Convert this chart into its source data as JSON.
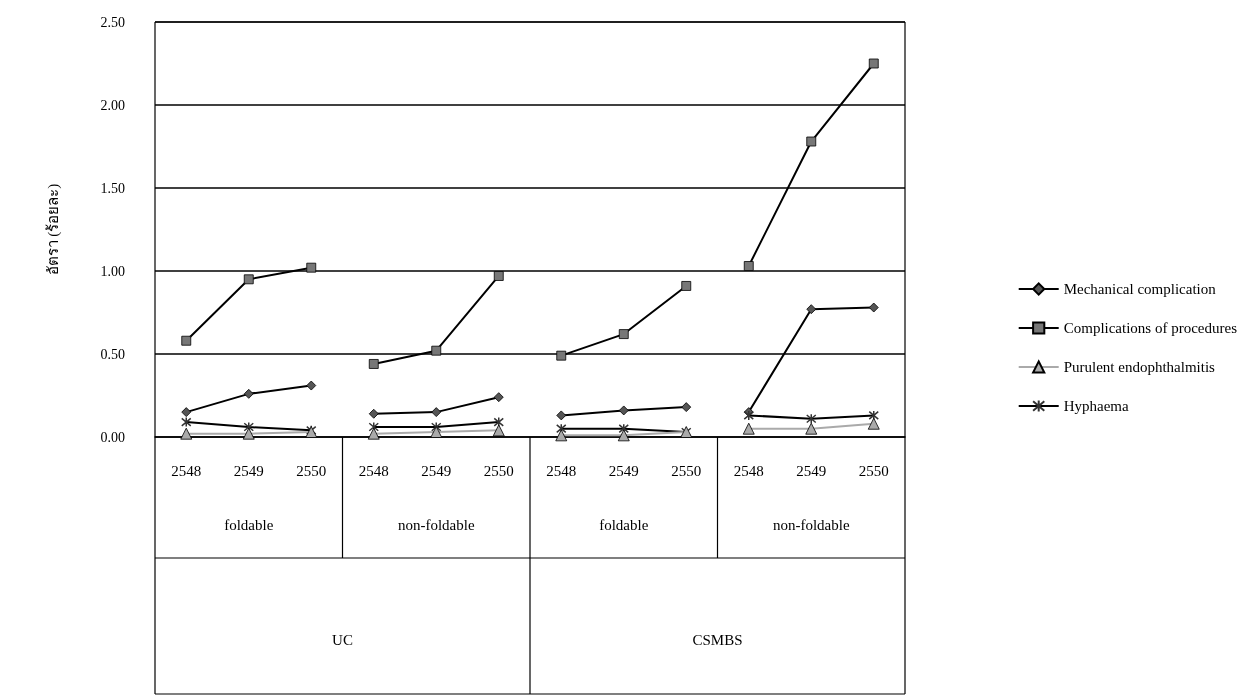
{
  "chart_data": {
    "type": "line",
    "ylabel": "อัตรา (ร้อยละ)",
    "categories": [
      "2548",
      "2549",
      "2550",
      "2548",
      "2549",
      "2550",
      "2548",
      "2549",
      "2550",
      "2548",
      "2549",
      "2550"
    ],
    "series": [
      {
        "name": "Mechanical complication",
        "color": "#555555",
        "marker": "diamond",
        "values": [
          0.15,
          0.26,
          0.31,
          0.14,
          0.15,
          0.24,
          0.13,
          0.16,
          0.18,
          0.15,
          0.77,
          0.78
        ]
      },
      {
        "name": "Complications of procedures",
        "color": "#777777",
        "marker": "square",
        "values": [
          0.58,
          0.95,
          1.02,
          0.44,
          0.52,
          0.97,
          0.49,
          0.62,
          0.91,
          1.03,
          1.78,
          2.25
        ]
      },
      {
        "name": "Purulent endophthalmitis",
        "color": "#aaaaaa",
        "marker": "triangle",
        "values": [
          0.02,
          0.02,
          0.03,
          0.02,
          0.03,
          0.04,
          0.01,
          0.01,
          0.03,
          0.05,
          0.05,
          0.08
        ]
      },
      {
        "name": "Hyphaema",
        "color": "#333333",
        "marker": "cross",
        "values": [
          0.09,
          0.06,
          0.04,
          0.06,
          0.06,
          0.09,
          0.05,
          0.05,
          0.03,
          0.13,
          0.11,
          0.13
        ]
      }
    ],
    "ylim": [
      0,
      2.5
    ],
    "yticks": [
      {
        "value": 0,
        "label": "0.00"
      },
      {
        "value": 0.5,
        "label": "0.50"
      },
      {
        "value": 1,
        "label": "1.00"
      },
      {
        "value": 1.5,
        "label": "1.50"
      },
      {
        "value": 2,
        "label": "2.00"
      },
      {
        "value": 2.5,
        "label": "2.50"
      }
    ],
    "grid": "y",
    "legend": "right",
    "annotations": [
      "foldable",
      "non-foldable",
      "foldable",
      "non-foldable",
      "UC",
      "CSMBS"
    ]
  }
}
